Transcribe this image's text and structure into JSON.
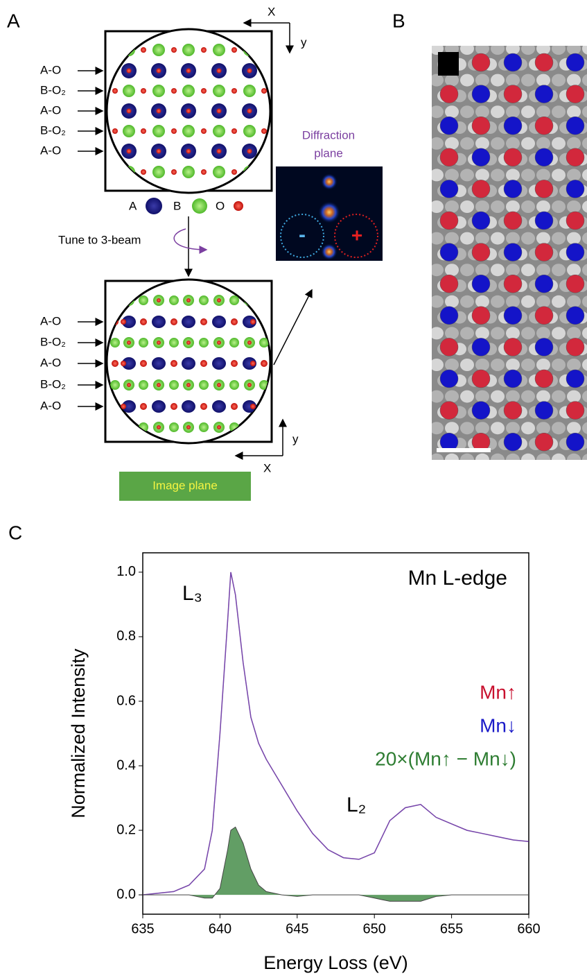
{
  "panel_labels": [
    "A",
    "B",
    "C"
  ],
  "panel_a": {
    "top_axes": {
      "x": "X",
      "y": "y"
    },
    "row_labels_top": [
      "A-O",
      "B-O₂",
      "A-O",
      "B-O₂",
      "A-O"
    ],
    "legend": [
      "A",
      "B",
      "O"
    ],
    "tune": "Tune to 3-beam",
    "diffraction": {
      "title": [
        "Diffraction",
        "plane"
      ],
      "minus": "-",
      "plus": "+"
    },
    "row_labels_bottom": [
      "A-O",
      "B-O₂",
      "A-O",
      "B-O₂",
      "A-O"
    ],
    "bottom_axes": {
      "x": "X",
      "y": "y"
    },
    "image_plane": "Image plane"
  },
  "chart_data": {
    "type": "line",
    "title": "Mn L-edge",
    "x_label": "Energy Loss (eV)",
    "y_label": "Normalized Intensity",
    "annotations": [
      "L₃",
      "L₂"
    ],
    "x": [
      635,
      636,
      637,
      638,
      639,
      639.5,
      640,
      640.5,
      640.7,
      641,
      641.5,
      642,
      642.5,
      643,
      644,
      645,
      646,
      647,
      648,
      649,
      650,
      650.5,
      651,
      652,
      653,
      654,
      655,
      656,
      657,
      658,
      659,
      660
    ],
    "series": [
      {
        "name": "Mn↑",
        "color": "#c8102e",
        "values": [
          0,
          0.005,
          0.01,
          0.03,
          0.08,
          0.2,
          0.5,
          0.85,
          1.0,
          0.93,
          0.72,
          0.55,
          0.47,
          0.42,
          0.34,
          0.26,
          0.19,
          0.14,
          0.115,
          0.11,
          0.13,
          0.18,
          0.23,
          0.27,
          0.28,
          0.24,
          0.22,
          0.2,
          0.19,
          0.18,
          0.17,
          0.165
        ]
      },
      {
        "name": "Mn↓",
        "color": "#1a1ac8",
        "values": [
          0,
          0.005,
          0.01,
          0.03,
          0.08,
          0.2,
          0.5,
          0.85,
          1.0,
          0.93,
          0.72,
          0.55,
          0.47,
          0.42,
          0.34,
          0.26,
          0.19,
          0.14,
          0.115,
          0.11,
          0.13,
          0.18,
          0.23,
          0.27,
          0.28,
          0.24,
          0.22,
          0.2,
          0.19,
          0.18,
          0.17,
          0.165
        ]
      },
      {
        "name": "20×(Mn↑ − Mn↓)",
        "color": "#2e7d32",
        "fill": true,
        "values": [
          0,
          0,
          0,
          0,
          -0.01,
          -0.01,
          0.02,
          0.14,
          0.2,
          0.21,
          0.16,
          0.08,
          0.03,
          0.01,
          0,
          -0.005,
          0,
          0,
          0,
          0,
          -0.01,
          -0.015,
          -0.02,
          -0.02,
          -0.02,
          -0.005,
          0,
          0,
          0,
          0,
          0,
          0
        ]
      }
    ],
    "xlim": [
      635,
      660
    ],
    "xticks": [
      635,
      640,
      645,
      650,
      655,
      660
    ],
    "ylim": [
      -0.06,
      1.06
    ],
    "yticks": [
      {
        "value": 0,
        "label": "0.0"
      },
      {
        "value": 0.2,
        "label": "0.2"
      },
      {
        "value": 0.4,
        "label": "0.4"
      },
      {
        "value": 0.6,
        "label": "0.6"
      },
      {
        "value": 0.8,
        "label": "0.8"
      },
      {
        "value": 1.0,
        "label": "1.0"
      }
    ]
  }
}
